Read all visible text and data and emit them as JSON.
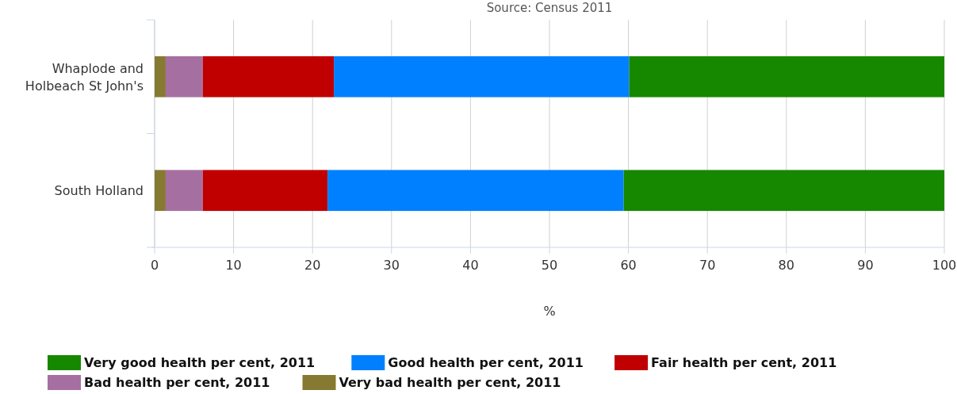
{
  "chart_data": {
    "type": "bar",
    "orientation": "horizontal",
    "stacked": true,
    "subtitle": "Source: Census 2011",
    "xlabel": "%",
    "categories": [
      "Whaplode and Holbeach St John's",
      "South Holland"
    ],
    "series": [
      {
        "name": "Very bad health per cent, 2011",
        "color": "#867a32",
        "values": [
          1.4,
          1.4
        ]
      },
      {
        "name": "Bad health per cent, 2011",
        "color": "#a66fa1",
        "values": [
          4.7,
          4.7
        ]
      },
      {
        "name": "Fair health per cent, 2011",
        "color": "#c00000",
        "values": [
          16.6,
          15.8
        ]
      },
      {
        "name": "Good health per cent, 2011",
        "color": "#0080ff",
        "values": [
          37.4,
          37.5
        ]
      },
      {
        "name": "Very good health per cent, 2011",
        "color": "#168800",
        "values": [
          39.9,
          40.6
        ]
      }
    ],
    "xlim": [
      0,
      100
    ],
    "xticks": [
      0,
      10,
      20,
      30,
      40,
      50,
      60,
      70,
      80,
      90,
      100
    ],
    "grid": "x",
    "legend": "bottom"
  }
}
